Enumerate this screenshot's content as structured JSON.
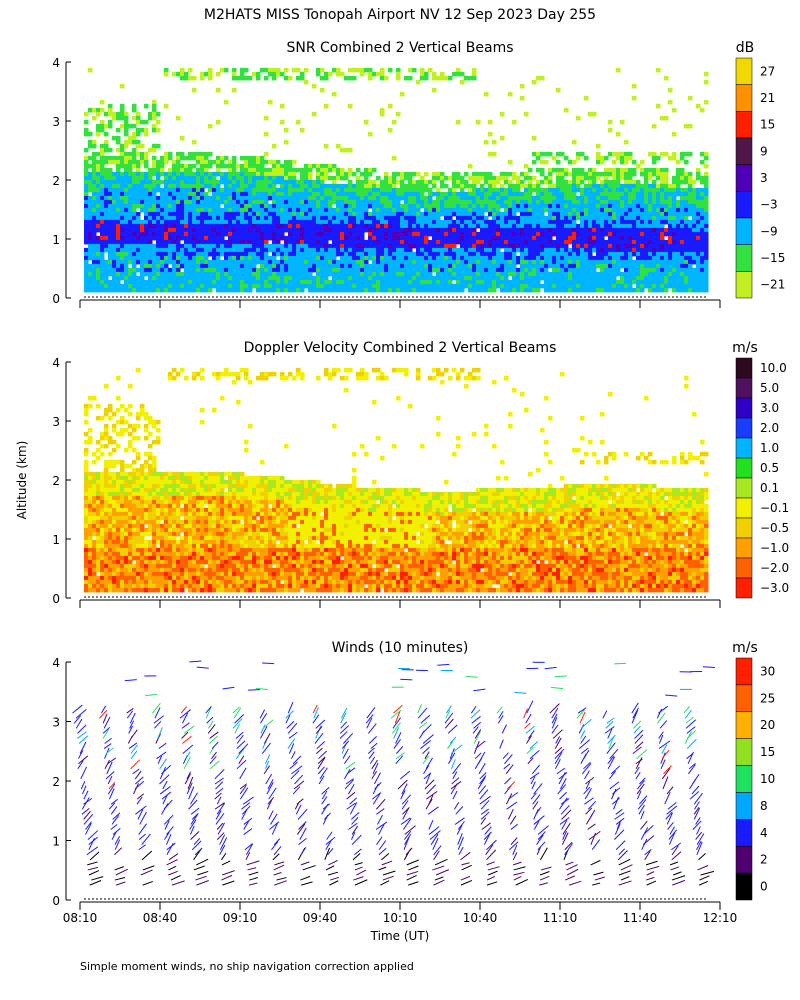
{
  "title": "M2HATS MISS Tonopah Airport NV  12 Sep 2023 Day 255",
  "y_axis_label": "Altitude (km)",
  "x_axis_label": "Time (UT)",
  "footnote": "Simple moment winds, no ship navigation correction applied",
  "chart_data": [
    {
      "type": "heatmap",
      "title": "SNR Combined 2 Vertical Beams",
      "units": "dB",
      "xlabel": "Time (UT)",
      "ylabel": "Altitude (km)",
      "x_ticks": [
        "08:10",
        "08:40",
        "09:10",
        "09:40",
        "10:10",
        "10:40",
        "11:10",
        "11:40",
        "12:10"
      ],
      "y_ticks": [
        "0",
        "1",
        "2",
        "3",
        "4"
      ],
      "ylim": [
        0,
        4
      ],
      "colorbar": {
        "labels": [
          "27",
          "21",
          "15",
          "9",
          "3",
          "−3",
          "−9",
          "−15",
          "−21"
        ],
        "colors": [
          "#f0d800",
          "#ff9000",
          "#ff2000",
          "#501848",
          "#5000b8",
          "#1a1aff",
          "#00b4ff",
          "#32e040",
          "#c0f020"
        ]
      },
      "description_layers": [
        {
          "name": "strong echo core",
          "altitude_km": [
            0.9,
            1.3
          ],
          "color": "#1a1aff"
        },
        {
          "name": "moderate echo",
          "altitude_km": [
            0.2,
            2.2
          ],
          "color": "#00b4ff"
        },
        {
          "name": "weak upper echo",
          "altitude_km": [
            2.2,
            3.9
          ],
          "color": "#32e040"
        }
      ]
    },
    {
      "type": "heatmap",
      "title": "Doppler Velocity Combined 2 Vertical Beams",
      "units": "m/s",
      "xlabel": "Time (UT)",
      "ylabel": "Altitude (km)",
      "x_ticks": [
        "08:10",
        "08:40",
        "09:10",
        "09:40",
        "10:10",
        "10:40",
        "11:10",
        "11:40",
        "12:10"
      ],
      "y_ticks": [
        "0",
        "1",
        "2",
        "3",
        "4"
      ],
      "ylim": [
        0,
        4
      ],
      "colorbar": {
        "labels": [
          "10.0",
          "5.0",
          "3.0",
          "2.0",
          "1.0",
          "0.5",
          "0.1",
          "−0.1",
          "−0.5",
          "−1.0",
          "−2.0",
          "−3.0"
        ],
        "colors": [
          "#300820",
          "#501060",
          "#3000c8",
          "#1a3cff",
          "#00b4ff",
          "#20e020",
          "#a8e820",
          "#f0f000",
          "#f0d000",
          "#ffa000",
          "#ff6000",
          "#ff2000"
        ]
      }
    },
    {
      "type": "scatter",
      "title": "Winds (10 minutes)",
      "units": "m/s",
      "xlabel": "Time (UT)",
      "ylabel": "Altitude (km)",
      "x_ticks": [
        "08:10",
        "08:40",
        "09:10",
        "09:40",
        "10:10",
        "10:40",
        "11:10",
        "11:40",
        "12:10"
      ],
      "y_ticks": [
        "0",
        "1",
        "2",
        "3",
        "4"
      ],
      "ylim": [
        0,
        4
      ],
      "colorbar": {
        "labels": [
          "30",
          "25",
          "20",
          "15",
          "10",
          "8",
          "4",
          "2",
          "0"
        ],
        "colors": [
          "#ff2000",
          "#ff6000",
          "#ffb000",
          "#90e020",
          "#20e060",
          "#00a8ff",
          "#1a1aff",
          "#500070",
          "#000000"
        ]
      }
    }
  ]
}
